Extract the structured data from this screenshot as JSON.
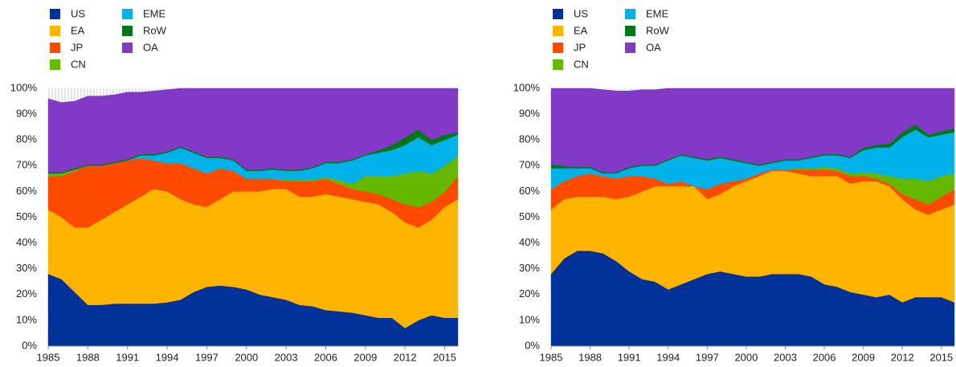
{
  "chart_data": [
    {
      "type": "stacked-area",
      "x": [
        1985,
        1986,
        1987,
        1988,
        1989,
        1990,
        1991,
        1992,
        1993,
        1994,
        1995,
        1996,
        1997,
        1998,
        1999,
        2000,
        2001,
        2002,
        2003,
        2004,
        2005,
        2006,
        2007,
        2008,
        2009,
        2010,
        2011,
        2012,
        2013,
        2014,
        2015,
        2016
      ],
      "xlim": [
        1985,
        2016
      ],
      "xticks": [
        1985,
        1988,
        1991,
        1994,
        1997,
        2000,
        2003,
        2006,
        2009,
        2012,
        2015
      ],
      "ylim": [
        0,
        100
      ],
      "yticks": [
        {
          "value": 0,
          "label": "0%"
        },
        {
          "value": 10,
          "label": "10%"
        },
        {
          "value": 20,
          "label": "20%"
        },
        {
          "value": 30,
          "label": "30%"
        },
        {
          "value": 40,
          "label": "40%"
        },
        {
          "value": 50,
          "label": "50%"
        },
        {
          "value": 60,
          "label": "60%"
        },
        {
          "value": 70,
          "label": "70%"
        },
        {
          "value": 80,
          "label": "80%"
        },
        {
          "value": 90,
          "label": "90%"
        },
        {
          "value": 100,
          "label": "100%"
        }
      ],
      "legend": "top-left",
      "series": [
        {
          "name": "US",
          "color": "#003299",
          "values": [
            28,
            26,
            21,
            16,
            16,
            16.5,
            16.5,
            16.5,
            16.5,
            17,
            18,
            21,
            23,
            23.5,
            23,
            22,
            20,
            19,
            18,
            16,
            15.5,
            14,
            13.5,
            13,
            12,
            11,
            11,
            7,
            10,
            12,
            11,
            11
          ]
        },
        {
          "name": "EA",
          "color": "#FFB400",
          "values": [
            25,
            24,
            25,
            30,
            33,
            35.5,
            38.5,
            41.5,
            44.5,
            43,
            39,
            34,
            31,
            33.5,
            37,
            38,
            40,
            42,
            43,
            42,
            42.5,
            45,
            44.5,
            44,
            44,
            44,
            41,
            41,
            36,
            37,
            43,
            46
          ]
        },
        {
          "name": "JP",
          "color": "#FF4B00",
          "values": [
            13,
            16,
            22,
            24,
            21,
            19,
            17,
            15,
            11,
            11,
            14,
            14,
            13,
            12,
            8,
            5,
            5,
            4,
            3,
            6,
            6,
            6,
            5,
            4,
            4,
            4,
            5,
            7,
            8,
            7,
            6,
            9
          ]
        },
        {
          "name": "CN",
          "color": "#65B800",
          "values": [
            1,
            1,
            0.5,
            0,
            0,
            0,
            0,
            0,
            0,
            0,
            0,
            0,
            0,
            0,
            0,
            0,
            0,
            0,
            0.5,
            0.5,
            0.5,
            0.5,
            1.5,
            2,
            6,
            7,
            9,
            12,
            14,
            11,
            10,
            8
          ]
        },
        {
          "name": "EME",
          "color": "#00B1EA",
          "values": [
            0,
            0,
            0,
            0,
            0,
            0,
            0,
            1,
            2,
            4,
            6,
            6,
            6,
            4,
            4,
            3,
            3,
            3.5,
            3.5,
            3.5,
            4.5,
            5.5,
            6.5,
            9,
            8,
            9,
            10,
            11,
            13,
            11,
            10,
            8
          ]
        },
        {
          "name": "RoW",
          "color": "#007816",
          "values": [
            0.5,
            0.5,
            0.5,
            0.5,
            0.5,
            0.5,
            0.5,
            0.5,
            0.5,
            0.5,
            0.5,
            0.5,
            0.5,
            0.5,
            0.5,
            0.5,
            0.5,
            0.5,
            0.5,
            0.5,
            0.5,
            0.5,
            0.5,
            0.5,
            0.5,
            1,
            2,
            3,
            3,
            2,
            2,
            1
          ]
        },
        {
          "name": "OA",
          "color": "#8139C6",
          "values": [
            28.5,
            27,
            26,
            26.5,
            26.5,
            26,
            26,
            24,
            24.5,
            24,
            22.5,
            24.5,
            26.5,
            26.5,
            27.5,
            31.5,
            31.5,
            31,
            31.5,
            31.5,
            30.5,
            28.5,
            28.5,
            27.5,
            25.5,
            24,
            22,
            19,
            16,
            20,
            18,
            17
          ]
        }
      ]
    },
    {
      "type": "stacked-area",
      "x": [
        1985,
        1986,
        1987,
        1988,
        1989,
        1990,
        1991,
        1992,
        1993,
        1994,
        1995,
        1996,
        1997,
        1998,
        1999,
        2000,
        2001,
        2002,
        2003,
        2004,
        2005,
        2006,
        2007,
        2008,
        2009,
        2010,
        2011,
        2012,
        2013,
        2014,
        2015,
        2016
      ],
      "xlim": [
        1985,
        2016
      ],
      "xticks": [
        1985,
        1988,
        1991,
        1994,
        1997,
        2000,
        2003,
        2006,
        2009,
        2012,
        2015
      ],
      "ylim": [
        0,
        100
      ],
      "yticks": [
        {
          "value": 0,
          "label": "0%"
        },
        {
          "value": 10,
          "label": "10%"
        },
        {
          "value": 20,
          "label": "20%"
        },
        {
          "value": 30,
          "label": "30%"
        },
        {
          "value": 40,
          "label": "40%"
        },
        {
          "value": 50,
          "label": "50%"
        },
        {
          "value": 60,
          "label": "60%"
        },
        {
          "value": 70,
          "label": "70%"
        },
        {
          "value": 80,
          "label": "80%"
        },
        {
          "value": 90,
          "label": "90%"
        },
        {
          "value": 100,
          "label": "100%"
        }
      ],
      "legend": "top-left",
      "series": [
        {
          "name": "US",
          "color": "#003299",
          "values": [
            28,
            34,
            37,
            37,
            36,
            33,
            29,
            26,
            25,
            22,
            24,
            26,
            28,
            29,
            28,
            27,
            27,
            28,
            28,
            28,
            27,
            24,
            23,
            21,
            20,
            19,
            20,
            17,
            19,
            19,
            19,
            17
          ]
        },
        {
          "name": "EA",
          "color": "#FFB400",
          "values": [
            25,
            23,
            21,
            21,
            22,
            24,
            29,
            34,
            37,
            40,
            38,
            36,
            29,
            30,
            34,
            37,
            39,
            40,
            40,
            39,
            39,
            42,
            43,
            42,
            44,
            45,
            42,
            40,
            34,
            32,
            34,
            38
          ]
        },
        {
          "name": "JP",
          "color": "#FF4B00",
          "values": [
            8,
            7,
            8,
            9,
            8,
            8,
            8,
            6,
            3,
            1,
            2,
            0,
            4,
            4,
            2,
            1,
            1,
            0.5,
            0.5,
            1.5,
            2.5,
            2.5,
            2,
            3,
            2,
            1,
            1,
            2,
            4,
            4,
            5,
            6
          ]
        },
        {
          "name": "CN",
          "color": "#65B800",
          "values": [
            0,
            0,
            0,
            0,
            0,
            0,
            0,
            0,
            0,
            0,
            0,
            0,
            0,
            0,
            0,
            0,
            0,
            0,
            0,
            0.5,
            0.5,
            1,
            1,
            1,
            1.5,
            2,
            3,
            6,
            8,
            9,
            8,
            6
          ]
        },
        {
          "name": "EME",
          "color": "#00B1EA",
          "values": [
            8,
            5,
            3,
            2,
            1,
            2,
            3,
            4,
            5,
            9,
            10,
            11,
            11,
            10,
            8,
            6,
            3,
            2.5,
            3.5,
            3,
            4,
            4.5,
            5,
            6,
            8.5,
            10,
            11,
            16,
            19,
            17,
            16,
            16
          ]
        },
        {
          "name": "RoW",
          "color": "#007816",
          "values": [
            1.5,
            1,
            0.5,
            0.5,
            0.5,
            0.5,
            0.5,
            0.5,
            0.5,
            0.5,
            0.5,
            0.5,
            0.5,
            0.5,
            0.5,
            0.5,
            0.5,
            0.5,
            0.5,
            0.5,
            0.5,
            0.5,
            0.5,
            0.5,
            1,
            1,
            1.5,
            2,
            2,
            1,
            1.5,
            1.5
          ]
        },
        {
          "name": "OA",
          "color": "#8139C6",
          "values": [
            29.5,
            30,
            30.5,
            30.5,
            32,
            31.5,
            29.5,
            29,
            29,
            27.5,
            25.5,
            26.5,
            27.5,
            26.5,
            27.5,
            28.5,
            29.5,
            28.5,
            27.5,
            27.5,
            26.5,
            25.5,
            25.5,
            26.5,
            23,
            22,
            21.5,
            17,
            14,
            18,
            16.5,
            15.5
          ]
        }
      ]
    }
  ]
}
